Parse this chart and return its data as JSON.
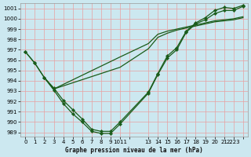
{
  "title": "Graphe pression niveau de la mer (hPa)",
  "bg_color": "#cce8f0",
  "grid_color": "#e8a0a0",
  "line_color": "#1a5c1a",
  "ylim_min": 988.6,
  "ylim_max": 1001.5,
  "yticks": [
    989,
    990,
    991,
    992,
    993,
    994,
    995,
    996,
    997,
    998,
    999,
    1000,
    1001
  ],
  "xtick_positions": [
    0,
    1,
    2,
    3,
    4,
    5,
    6,
    7,
    8,
    9,
    10,
    11,
    13,
    14,
    15,
    16,
    17,
    18,
    19,
    20,
    21,
    22,
    23
  ],
  "xtick_labels": [
    "0",
    "1",
    "2",
    "3",
    "4",
    "5",
    "6",
    "7",
    "8",
    "9",
    "1011",
    "",
    "13",
    "14",
    "15",
    "16",
    "17",
    "18",
    "19",
    "20",
    "21",
    "2223",
    ""
  ],
  "s1_x": [
    0,
    1,
    2,
    3,
    4,
    5,
    6,
    7,
    8,
    9,
    10,
    13,
    14,
    15,
    16,
    17,
    18,
    19,
    20,
    21,
    22,
    23
  ],
  "s1_y": [
    996.8,
    995.7,
    994.3,
    993.3,
    992.1,
    991.2,
    990.3,
    989.3,
    989.1,
    989.1,
    990.0,
    992.9,
    994.7,
    996.4,
    997.2,
    998.8,
    999.6,
    1000.1,
    1000.8,
    1001.1,
    1001.0,
    1001.3
  ],
  "s2_x": [
    0,
    1,
    2,
    3,
    4,
    5,
    6,
    7,
    8,
    9,
    10,
    13,
    14,
    15,
    16,
    17,
    18,
    19,
    20,
    21,
    22,
    23
  ],
  "s2_y": [
    996.8,
    995.7,
    994.3,
    993.1,
    991.8,
    990.8,
    990.0,
    989.1,
    988.9,
    988.9,
    989.8,
    992.8,
    994.6,
    996.2,
    997.0,
    998.7,
    999.5,
    999.9,
    1000.5,
    1000.8,
    1000.8,
    1001.2
  ],
  "s3_x": [
    2,
    3,
    10,
    13,
    14,
    15,
    16,
    17,
    18,
    19,
    20,
    21,
    22,
    23
  ],
  "s3_y": [
    994.3,
    993.2,
    995.3,
    997.1,
    998.2,
    998.6,
    998.9,
    999.1,
    999.3,
    999.5,
    999.7,
    999.8,
    999.9,
    1000.1
  ],
  "s4_x": [
    2,
    3,
    10,
    13,
    14,
    15,
    16,
    17,
    18,
    19,
    20,
    21,
    22,
    23
  ],
  "s4_y": [
    994.3,
    993.2,
    996.3,
    997.6,
    998.5,
    998.8,
    999.0,
    999.2,
    999.4,
    999.6,
    999.8,
    999.9,
    1000.0,
    1000.2
  ],
  "title_fontsize": 5.5,
  "tick_fontsize": 5.0,
  "lw": 0.9
}
